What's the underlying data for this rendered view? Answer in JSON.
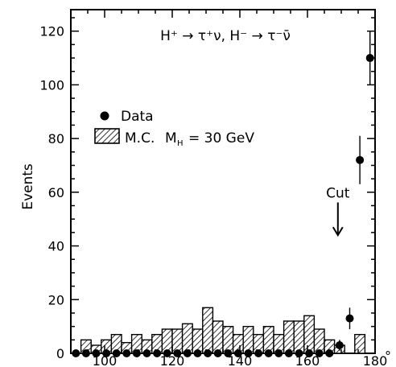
{
  "chart_data": {
    "type": "bar",
    "title": "H⁺ → τ⁺ν, H⁻ → τ⁻ν̄",
    "xlabel": "",
    "ylabel": "Events",
    "xlim": [
      90,
      180
    ],
    "ylim": [
      0,
      128
    ],
    "x_unit_label": "°",
    "x_ticks": [
      100,
      120,
      140,
      160,
      180
    ],
    "y_ticks": [
      0,
      20,
      40,
      60,
      80,
      100,
      120
    ],
    "grid": false,
    "legend_position": "upper-left",
    "series": [
      {
        "name": "M.C. M_H = 30 GeV",
        "kind": "histogram",
        "fill": "hatched",
        "bin_width": 3,
        "bin_starts": [
          93,
          96,
          99,
          102,
          105,
          108,
          111,
          114,
          117,
          120,
          123,
          126,
          129,
          132,
          135,
          138,
          141,
          144,
          147,
          150,
          153,
          156,
          159,
          162,
          165,
          168,
          171,
          174,
          177
        ],
        "values": [
          5,
          3,
          5,
          7,
          4,
          7,
          5,
          7,
          9,
          9,
          11,
          9,
          17,
          12,
          10,
          7,
          10,
          7,
          10,
          7,
          12,
          12,
          14,
          9,
          5,
          3,
          0,
          7,
          0
        ]
      },
      {
        "name": "Data",
        "kind": "points",
        "x": [
          91.5,
          94.5,
          97.5,
          100.5,
          103.5,
          106.5,
          109.5,
          112.5,
          115.5,
          118.5,
          121.5,
          124.5,
          127.5,
          130.5,
          133.5,
          136.5,
          139.5,
          142.5,
          145.5,
          148.5,
          151.5,
          154.5,
          157.5,
          160.5,
          163.5,
          166.5,
          169.5,
          172.5,
          175.5,
          178.5
        ],
        "y": [
          0,
          0,
          0,
          0,
          0,
          0,
          0,
          0,
          0,
          0,
          0,
          0,
          0,
          0,
          0,
          0,
          0,
          0,
          0,
          0,
          0,
          0,
          0,
          0,
          0,
          0,
          3,
          13,
          72,
          110
        ],
        "err": [
          0,
          0,
          0,
          0,
          0,
          0,
          0,
          0,
          0,
          0,
          0,
          0,
          0,
          0,
          0,
          0,
          0,
          0,
          0,
          0,
          0,
          0,
          0,
          0,
          0,
          0,
          2,
          4,
          9,
          10
        ]
      }
    ],
    "annotations": [
      {
        "text": "Cut",
        "x": 169,
        "arrow_from_y": 55,
        "arrow_to_y": 44
      }
    ],
    "legend": {
      "data_label": "Data",
      "mc_label": "M.C.",
      "mass_label": "M",
      "mass_subscript": "H",
      "mass_value": "= 30 GeV"
    }
  }
}
